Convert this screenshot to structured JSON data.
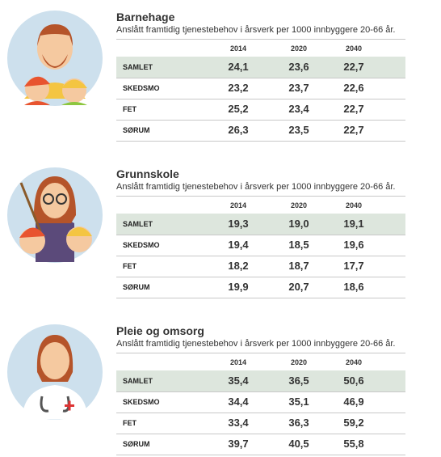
{
  "sections": [
    {
      "title": "Barnehage",
      "subtitle": "Anslått framtidig tjenestebehov i årsverk per 1000 innbyggere 20-66 år.",
      "columns": [
        "2014",
        "2020",
        "2040"
      ],
      "rows": [
        [
          "SAMLET",
          "24,1",
          "23,6",
          "22,7"
        ],
        [
          "SKEDSMO",
          "23,2",
          "23,7",
          "22,6"
        ],
        [
          "FET",
          "25,2",
          "23,4",
          "22,7"
        ],
        [
          "SØRUM",
          "26,3",
          "23,5",
          "22,7"
        ]
      ]
    },
    {
      "title": "Grunnskole",
      "subtitle": "Anslått framtidig tjenestebehov i årsverk per 1000 innbyggere 20-66 år.",
      "columns": [
        "2014",
        "2020",
        "2040"
      ],
      "rows": [
        [
          "SAMLET",
          "19,3",
          "19,0",
          "19,1"
        ],
        [
          "SKEDSMO",
          "19,4",
          "18,5",
          "19,6"
        ],
        [
          "FET",
          "18,2",
          "18,7",
          "17,7"
        ],
        [
          "SØRUM",
          "19,9",
          "20,7",
          "18,6"
        ]
      ]
    },
    {
      "title": "Pleie og omsorg",
      "subtitle": "Anslått framtidig tjenestebehov i årsverk per 1000 innbyggere 20-66 år.",
      "columns": [
        "2014",
        "2020",
        "2040"
      ],
      "rows": [
        [
          "SAMLET",
          "35,4",
          "36,5",
          "50,6"
        ],
        [
          "SKEDSMO",
          "34,4",
          "35,1",
          "46,9"
        ],
        [
          "FET",
          "33,4",
          "36,3",
          "59,2"
        ],
        [
          "SØRUM",
          "39,7",
          "40,5",
          "55,8"
        ]
      ]
    }
  ]
}
